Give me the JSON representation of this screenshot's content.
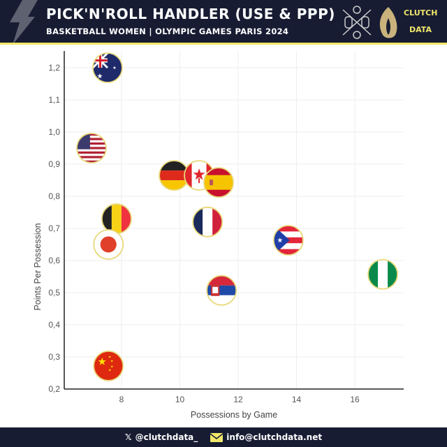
{
  "header": {
    "title": "PICK'N'ROLL HANDLER (USE & PPP)",
    "subtitle": "BASKETBALL WOMEN | OLYMPIC GAMES PARIS 2024",
    "brand_top": "CLUTCH",
    "brand_bottom": "DATA"
  },
  "footer": {
    "twitter": "@clutchdata_",
    "email": "info@clutchdata.net"
  },
  "colors": {
    "header_bg": "#171c33",
    "accent": "#f1e76a",
    "marker_border": "#e8d87a"
  },
  "chart_data": {
    "type": "scatter",
    "title": "PICK'N'ROLL HANDLER (USE & PPP)",
    "xlabel": "Possessions by Game",
    "ylabel": "Points Per Possession",
    "xlim": [
      6.05,
      17.7
    ],
    "ylim": [
      0.19,
      1.25
    ],
    "xticks": [
      8,
      10,
      12,
      14,
      16
    ],
    "xtick_labels": [
      "8",
      "10",
      "12",
      "14",
      "16"
    ],
    "yticks": [
      0.2,
      0.3,
      0.4,
      0.5,
      0.6,
      0.7,
      0.8,
      0.9,
      1.0,
      1.1,
      1.2
    ],
    "ytick_labels": [
      "0,2",
      "0,3",
      "0,4",
      "0,5",
      "0,6",
      "0,7",
      "0,8",
      "0,9",
      "1,0",
      "1,1",
      "1,2"
    ],
    "grid": true,
    "marker": "country-flag",
    "points": [
      {
        "flag": "australia",
        "x": 7.52,
        "y": 1.2
      },
      {
        "flag": "usa",
        "x": 6.97,
        "y": 0.95
      },
      {
        "flag": "germany",
        "x": 9.8,
        "y": 0.865
      },
      {
        "flag": "canada",
        "x": 10.66,
        "y": 0.865
      },
      {
        "flag": "spain",
        "x": 11.33,
        "y": 0.843
      },
      {
        "flag": "belgium",
        "x": 7.83,
        "y": 0.73
      },
      {
        "flag": "japan",
        "x": 7.55,
        "y": 0.65
      },
      {
        "flag": "france",
        "x": 10.95,
        "y": 0.72
      },
      {
        "flag": "puerto-rico",
        "x": 13.72,
        "y": 0.663
      },
      {
        "flag": "nigeria",
        "x": 16.96,
        "y": 0.557
      },
      {
        "flag": "serbia",
        "x": 11.43,
        "y": 0.507
      },
      {
        "flag": "china",
        "x": 7.55,
        "y": 0.272
      }
    ]
  }
}
